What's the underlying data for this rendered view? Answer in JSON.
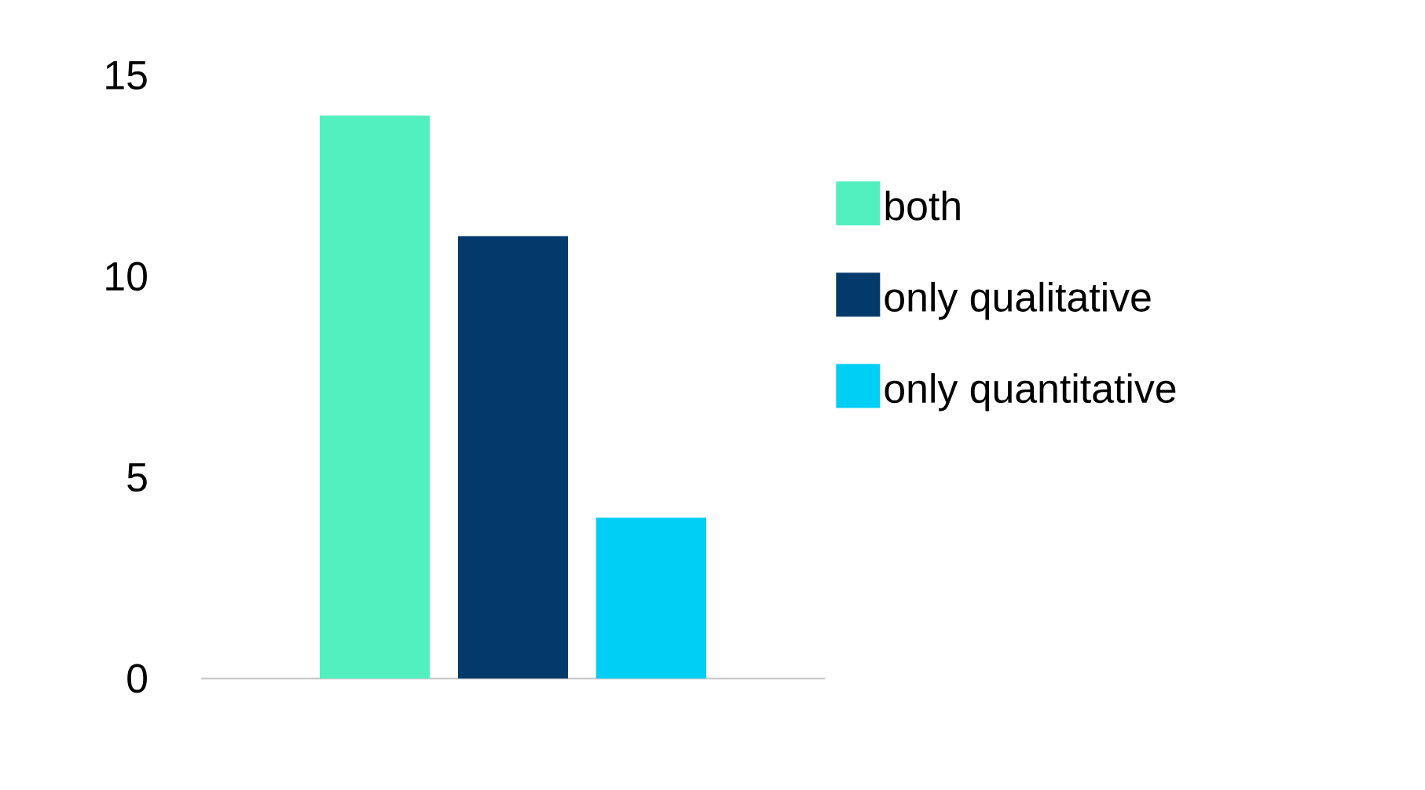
{
  "chart_data": {
    "type": "bar",
    "categories": [
      null
    ],
    "series": [
      {
        "name": "both",
        "color": "#52efbf",
        "values": [
          14
        ]
      },
      {
        "name": "only qualitative",
        "color": "#013a6b",
        "values": [
          11
        ]
      },
      {
        "name": "only quantitative",
        "color": "#00cff5",
        "values": [
          4
        ]
      }
    ],
    "ylim": [
      0,
      15
    ],
    "yticks": [
      0,
      5,
      10,
      15
    ],
    "legend": "right"
  }
}
